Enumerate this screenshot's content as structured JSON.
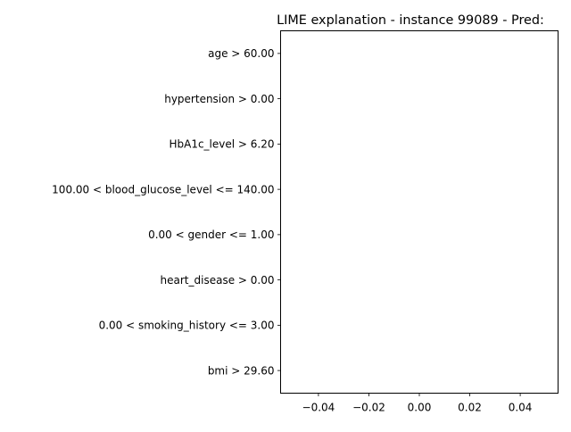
{
  "chart_data": {
    "type": "bar",
    "orientation": "horizontal",
    "title": "LIME explanation - instance 99089 - Pred:",
    "xlabel": "",
    "ylabel": "",
    "categories": [
      "age > 60.00",
      "hypertension > 0.00",
      "HbA1c_level > 6.20",
      "100.00 < blood_glucose_level <= 140.00",
      "0.00 < gender <= 1.00",
      "heart_disease > 0.00",
      "0.00 < smoking_history <= 3.00",
      "bmi > 29.60"
    ],
    "values": [
      0,
      0,
      0,
      0,
      0,
      0,
      0,
      0
    ],
    "xlim": [
      -0.055,
      0.055
    ],
    "xticks": [
      -0.04,
      -0.02,
      0.0,
      0.02,
      0.04
    ],
    "xtick_labels": [
      "−0.04",
      "−0.02",
      "0.00",
      "0.02",
      "0.04"
    ],
    "grid": false,
    "legend": "none"
  }
}
